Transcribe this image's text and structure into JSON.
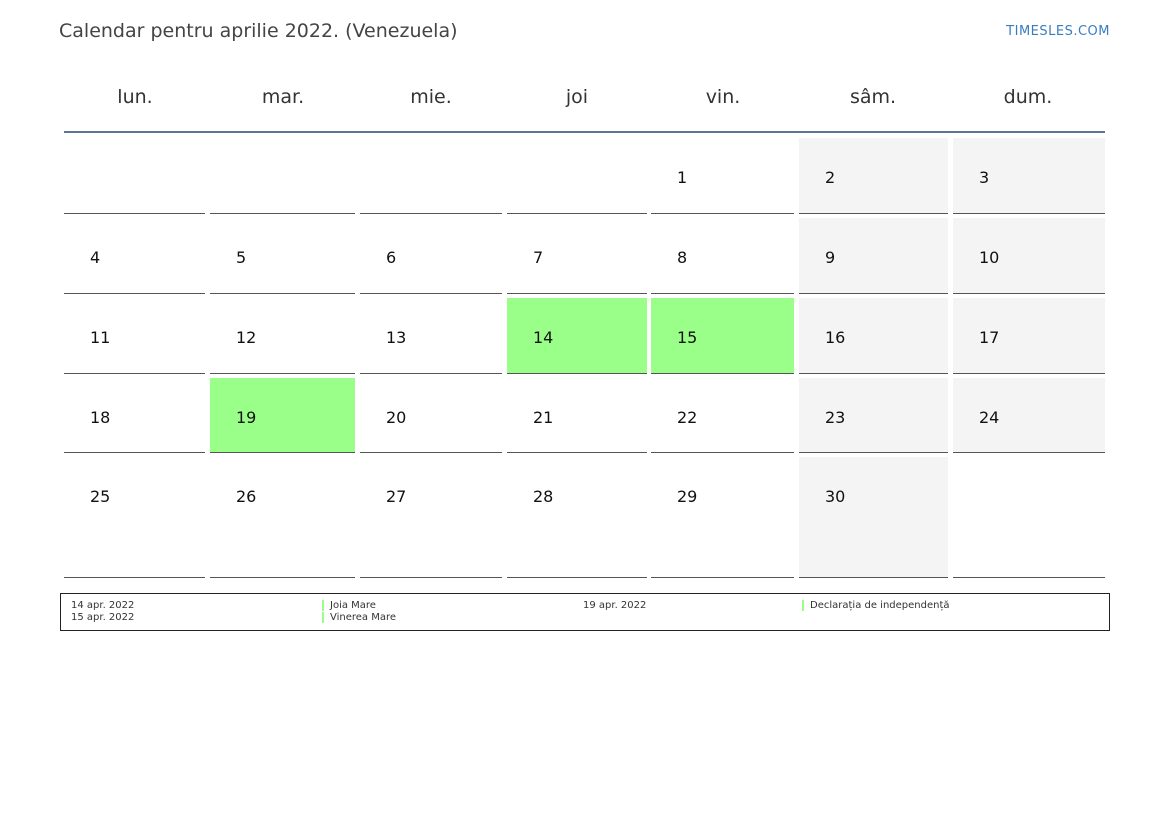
{
  "title": "Calendar pentru aprilie 2022. (Venezuela)",
  "brand": "TIMESLES.COM",
  "weekdays": [
    "lun.",
    "mar.",
    "mie.",
    "joi",
    "vin.",
    "sâm.",
    "dum."
  ],
  "colors": {
    "holiday": "#99ff88",
    "weekend": "#f4f4f4",
    "header_line": "#5b7593",
    "brand": "#3a7dbf"
  },
  "weeks": [
    [
      "",
      "",
      "",
      "",
      "1",
      "2",
      "3"
    ],
    [
      "4",
      "5",
      "6",
      "7",
      "8",
      "9",
      "10"
    ],
    [
      "11",
      "12",
      "13",
      "14",
      "15",
      "16",
      "17"
    ],
    [
      "18",
      "19",
      "20",
      "21",
      "22",
      "23",
      "24"
    ],
    [
      "25",
      "26",
      "27",
      "28",
      "29",
      "30",
      ""
    ]
  ],
  "holidays": [
    {
      "date": "14 apr. 2022",
      "name": "Joia Mare"
    },
    {
      "date": "15 apr. 2022",
      "name": "Vinerea Mare"
    },
    {
      "date": "19 apr. 2022",
      "name": "Declarația de independență"
    }
  ]
}
